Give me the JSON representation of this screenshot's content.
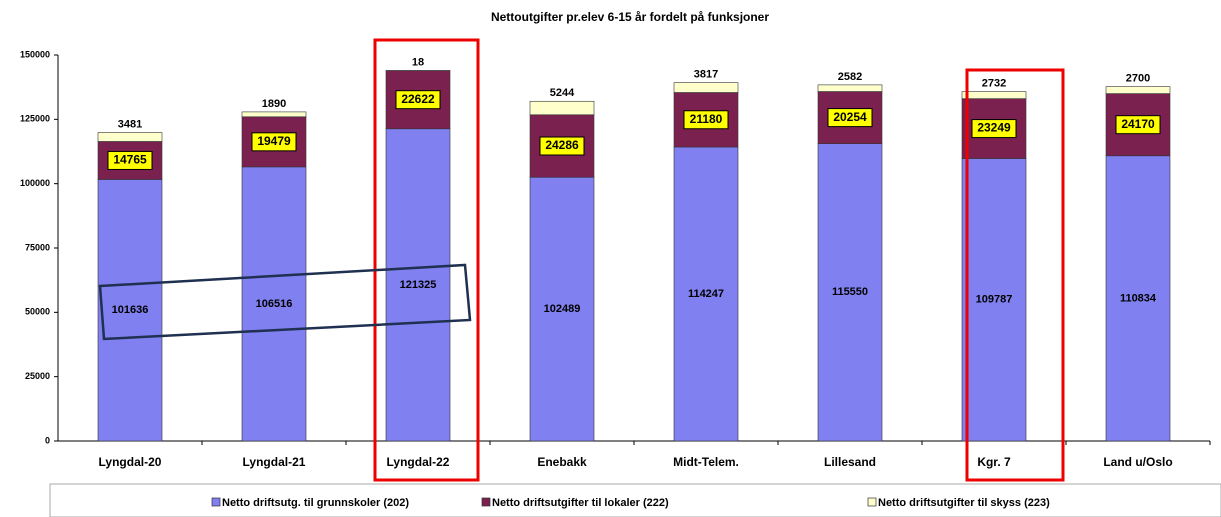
{
  "chart_data": {
    "type": "bar",
    "stacked": true,
    "title": "Nettoutgifter pr.elev 6-15 år fordelt på funksjoner",
    "categories": [
      "Lyngdal-20",
      "Lyngdal-21",
      "Lyngdal-22",
      "Enebakk",
      "Midt-Telem.",
      "Lillesand",
      "Kgr. 7",
      "Land u/Oslo"
    ],
    "series": [
      {
        "name": "Netto driftsutg. til grunnskoler (202)",
        "color": "#8080f0",
        "values": [
          101636,
          106516,
          121325,
          102489,
          114247,
          115550,
          109787,
          110834
        ]
      },
      {
        "name": "Netto driftsutgifter til lokaler (222)",
        "color": "#7b2150",
        "values": [
          14765,
          19479,
          22622,
          24286,
          21180,
          20254,
          23249,
          24170
        ]
      },
      {
        "name": "Netto driftsutgifter til skyss (223)",
        "color": "#ffffcc",
        "values": [
          3481,
          1890,
          18,
          5244,
          3817,
          2582,
          2732,
          2700
        ]
      }
    ],
    "ylim": [
      0,
      150000
    ],
    "yticks": [
      0,
      25000,
      50000,
      75000,
      100000,
      125000,
      150000
    ],
    "grid": false
  }
}
